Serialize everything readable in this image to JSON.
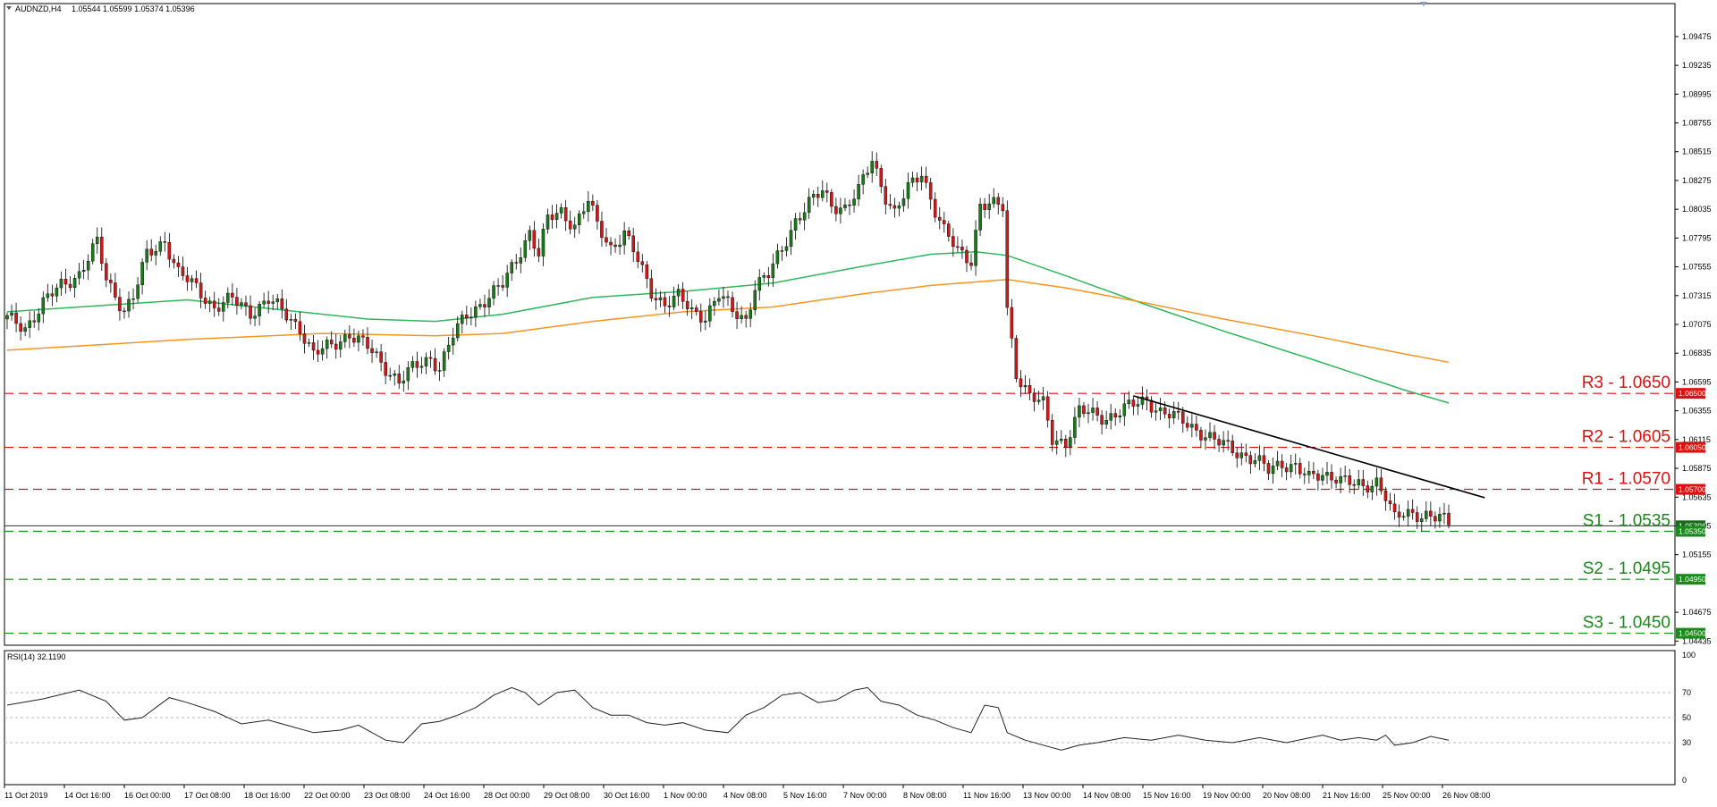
{
  "header": {
    "symbol": "AUDNZD,H4",
    "ohlc": "1.05544 1.05599 1.05374 1.05396"
  },
  "rsi_header": "RSI(14) 32.1190",
  "colors": {
    "bull": "#1a7a1a",
    "bear": "#d01818",
    "ma_fast": "#2db85a",
    "ma_slow": "#f7941d",
    "resistance": "#e01010",
    "support": "#1a8a1a",
    "trendline": "#000000"
  },
  "chart_data": [
    {
      "type": "candlestick",
      "y_ticks": [
        "1.09475",
        "1.09235",
        "1.08995",
        "1.08755",
        "1.08515",
        "1.08275",
        "1.08035",
        "1.07795",
        "1.07555",
        "1.07315",
        "1.07075",
        "1.06835",
        "1.06595",
        "1.06355",
        "1.06115",
        "1.05875",
        "1.05635",
        "1.05395",
        "1.05155",
        "1.04675",
        "1.04435"
      ],
      "x_ticks": [
        "11 Oct 2019",
        "14 Oct 16:00",
        "16 Oct 00:00",
        "17 Oct 08:00",
        "18 Oct 16:00",
        "22 Oct 00:00",
        "23 Oct 08:00",
        "24 Oct 16:00",
        "28 Oct 00:00",
        "29 Oct 08:00",
        "30 Oct 16:00",
        "1 Nov 00:00",
        "4 Nov 08:00",
        "5 Nov 16:00",
        "7 Nov 00:00",
        "8 Nov 08:00",
        "11 Nov 16:00",
        "13 Nov 00:00",
        "14 Nov 08:00",
        "15 Nov 16:00",
        "19 Nov 00:00",
        "20 Nov 08:00",
        "21 Nov 16:00",
        "25 Nov 00:00",
        "26 Nov 08:00"
      ],
      "ylim": [
        1.044,
        1.0975
      ],
      "price_tags": [
        {
          "label": "1.06500",
          "value": 1.065,
          "kind": "resistance"
        },
        {
          "label": "1.06050",
          "value": 1.0605,
          "kind": "resistance"
        },
        {
          "label": "1.05700",
          "value": 1.057,
          "kind": "resistance"
        },
        {
          "label": "1.05396",
          "value": 1.05396,
          "kind": "current"
        },
        {
          "label": "1.05350",
          "value": 1.0535,
          "kind": "support"
        },
        {
          "label": "1.04950",
          "value": 1.0495,
          "kind": "support"
        },
        {
          "label": "1.04500",
          "value": 1.045,
          "kind": "support"
        }
      ],
      "levels": [
        {
          "label": "R3 - 1.0650",
          "value": 1.065,
          "kind": "resistance"
        },
        {
          "label": "R2 - 1.0605",
          "value": 1.0605,
          "kind": "resistance"
        },
        {
          "label": "R1 - 1.0570",
          "value": 1.057,
          "kind": "resistance"
        },
        {
          "label": "S1 - 1.0535",
          "value": 1.0535,
          "kind": "support"
        },
        {
          "label": "S2 - 1.0495",
          "value": 1.0495,
          "kind": "support"
        },
        {
          "label": "S3 - 1.0450",
          "value": 1.045,
          "kind": "support"
        }
      ],
      "close_path": [
        [
          0,
          1.0712
        ],
        [
          4,
          1.0705
        ],
        [
          8,
          1.0725
        ],
        [
          12,
          1.074
        ],
        [
          16,
          1.075
        ],
        [
          20,
          1.0775
        ],
        [
          22,
          1.0745
        ],
        [
          26,
          1.072
        ],
        [
          28,
          1.073
        ],
        [
          31,
          1.0765
        ],
        [
          35,
          1.0778
        ],
        [
          38,
          1.075
        ],
        [
          42,
          1.0738
        ],
        [
          46,
          1.0722
        ],
        [
          50,
          1.0728
        ],
        [
          54,
          1.0718
        ],
        [
          58,
          1.0728
        ],
        [
          62,
          1.0715
        ],
        [
          65,
          1.0705
        ],
        [
          68,
          1.0682
        ],
        [
          72,
          1.069
        ],
        [
          76,
          1.07
        ],
        [
          80,
          1.0688
        ],
        [
          84,
          1.0672
        ],
        [
          87,
          1.066
        ],
        [
          90,
          1.067
        ],
        [
          94,
          1.068
        ],
        [
          96,
          1.0672
        ],
        [
          99,
          1.0698
        ],
        [
          102,
          1.0715
        ],
        [
          106,
          1.0728
        ],
        [
          110,
          1.074
        ],
        [
          113,
          1.0762
        ],
        [
          116,
          1.0785
        ],
        [
          118,
          1.0765
        ],
        [
          120,
          1.0795
        ],
        [
          123,
          1.0802
        ],
        [
          126,
          1.079
        ],
        [
          129,
          1.081
        ],
        [
          131,
          1.079
        ],
        [
          134,
          1.0772
        ],
        [
          137,
          1.0784
        ],
        [
          140,
          1.076
        ],
        [
          143,
          1.0735
        ],
        [
          146,
          1.0725
        ],
        [
          149,
          1.073
        ],
        [
          152,
          1.0718
        ],
        [
          155,
          1.0715
        ],
        [
          158,
          1.0732
        ],
        [
          161,
          1.0718
        ],
        [
          164,
          1.0712
        ],
        [
          166,
          1.074
        ],
        [
          169,
          1.0748
        ],
        [
          172,
          1.077
        ],
        [
          175,
          1.0795
        ],
        [
          178,
          1.0808
        ],
        [
          181,
          1.0818
        ],
        [
          183,
          1.0808
        ],
        [
          186,
          1.0805
        ],
        [
          189,
          1.0818
        ],
        [
          192,
          1.0845
        ],
        [
          195,
          1.0815
        ],
        [
          197,
          1.08
        ],
        [
          200,
          1.082
        ],
        [
          203,
          1.0835
        ],
        [
          206,
          1.0803
        ],
        [
          208,
          1.0785
        ],
        [
          211,
          1.0768
        ],
        [
          214,
          1.0762
        ],
        [
          216,
          1.0808
        ],
        [
          219,
          1.0806
        ],
        [
          221,
          1.0805
        ],
        [
          222,
          1.072
        ],
        [
          224,
          1.0668
        ],
        [
          227,
          1.0648
        ],
        [
          230,
          1.064
        ],
        [
          232,
          1.0612
        ],
        [
          235,
          1.061
        ],
        [
          238,
          1.0635
        ],
        [
          241,
          1.0632
        ],
        [
          244,
          1.063
        ],
        [
          247,
          1.0635
        ],
        [
          250,
          1.064
        ],
        [
          253,
          1.0645
        ],
        [
          256,
          1.0635
        ],
        [
          259,
          1.063
        ],
        [
          262,
          1.0625
        ],
        [
          265,
          1.0618
        ],
        [
          268,
          1.061
        ],
        [
          271,
          1.0605
        ],
        [
          274,
          1.06
        ],
        [
          277,
          1.0595
        ],
        [
          280,
          1.0585
        ],
        [
          283,
          1.0592
        ],
        [
          286,
          1.059
        ],
        [
          289,
          1.0578
        ],
        [
          292,
          1.0582
        ],
        [
          295,
          1.0582
        ],
        [
          298,
          1.0575
        ],
        [
          301,
          1.057
        ],
        [
          304,
          1.0578
        ],
        [
          306,
          1.0566
        ],
        [
          308,
          1.0545
        ],
        [
          310,
          1.0548
        ],
        [
          312,
          1.0549
        ],
        [
          315,
          1.055
        ],
        [
          318,
          1.0546
        ],
        [
          320,
          1.054
        ]
      ],
      "ma_fast": [
        [
          0,
          1.0718
        ],
        [
          40,
          1.0728
        ],
        [
          60,
          1.072
        ],
        [
          80,
          1.0712
        ],
        [
          95,
          1.071
        ],
        [
          110,
          1.0716
        ],
        [
          130,
          1.073
        ],
        [
          150,
          1.0735
        ],
        [
          170,
          1.0742
        ],
        [
          190,
          1.0756
        ],
        [
          205,
          1.0766
        ],
        [
          215,
          1.0768
        ],
        [
          222,
          1.0765
        ],
        [
          235,
          1.0748
        ],
        [
          252,
          1.0725
        ],
        [
          270,
          1.0702
        ],
        [
          290,
          1.0678
        ],
        [
          310,
          1.0653
        ],
        [
          320,
          1.0642
        ]
      ],
      "ma_slow": [
        [
          0,
          1.0686
        ],
        [
          40,
          1.0695
        ],
        [
          70,
          1.07
        ],
        [
          95,
          1.0698
        ],
        [
          110,
          1.07
        ],
        [
          130,
          1.071
        ],
        [
          150,
          1.0718
        ],
        [
          170,
          1.0722
        ],
        [
          190,
          1.0733
        ],
        [
          205,
          1.074
        ],
        [
          222,
          1.0745
        ],
        [
          235,
          1.0738
        ],
        [
          252,
          1.0726
        ],
        [
          270,
          1.0712
        ],
        [
          290,
          1.0698
        ],
        [
          310,
          1.0683
        ],
        [
          320,
          1.0676
        ]
      ],
      "trendline": [
        [
          250,
          1.0648
        ],
        [
          328,
          1.0563
        ]
      ]
    },
    {
      "type": "line",
      "name": "RSI(14)",
      "y_ticks": [
        "100",
        "70",
        "50",
        "30",
        "0"
      ],
      "ylim": [
        0,
        100
      ],
      "rsi": [
        [
          0,
          60
        ],
        [
          8,
          65
        ],
        [
          16,
          72
        ],
        [
          22,
          63
        ],
        [
          26,
          48
        ],
        [
          30,
          50
        ],
        [
          36,
          66
        ],
        [
          40,
          62
        ],
        [
          46,
          55
        ],
        [
          52,
          45
        ],
        [
          58,
          48
        ],
        [
          62,
          44
        ],
        [
          68,
          38
        ],
        [
          74,
          40
        ],
        [
          78,
          44
        ],
        [
          84,
          32
        ],
        [
          88,
          30
        ],
        [
          92,
          45
        ],
        [
          96,
          47
        ],
        [
          100,
          52
        ],
        [
          104,
          58
        ],
        [
          108,
          68
        ],
        [
          112,
          74
        ],
        [
          115,
          70
        ],
        [
          118,
          60
        ],
        [
          122,
          70
        ],
        [
          126,
          72
        ],
        [
          130,
          58
        ],
        [
          134,
          52
        ],
        [
          138,
          52
        ],
        [
          142,
          46
        ],
        [
          146,
          44
        ],
        [
          150,
          46
        ],
        [
          155,
          40
        ],
        [
          160,
          38
        ],
        [
          164,
          52
        ],
        [
          168,
          58
        ],
        [
          172,
          68
        ],
        [
          176,
          70
        ],
        [
          180,
          62
        ],
        [
          184,
          64
        ],
        [
          188,
          72
        ],
        [
          191,
          74
        ],
        [
          194,
          63
        ],
        [
          198,
          60
        ],
        [
          202,
          52
        ],
        [
          206,
          48
        ],
        [
          210,
          42
        ],
        [
          214,
          38
        ],
        [
          217,
          60
        ],
        [
          220,
          58
        ],
        [
          222,
          38
        ],
        [
          226,
          32
        ],
        [
          230,
          28
        ],
        [
          234,
          24
        ],
        [
          238,
          28
        ],
        [
          242,
          30
        ],
        [
          248,
          34
        ],
        [
          254,
          32
        ],
        [
          260,
          36
        ],
        [
          266,
          32
        ],
        [
          272,
          30
        ],
        [
          278,
          34
        ],
        [
          284,
          30
        ],
        [
          288,
          33
        ],
        [
          292,
          36
        ],
        [
          296,
          32
        ],
        [
          300,
          34
        ],
        [
          304,
          32
        ],
        [
          306,
          36
        ],
        [
          308,
          28
        ],
        [
          312,
          30
        ],
        [
          316,
          35
        ],
        [
          320,
          32
        ]
      ]
    }
  ]
}
